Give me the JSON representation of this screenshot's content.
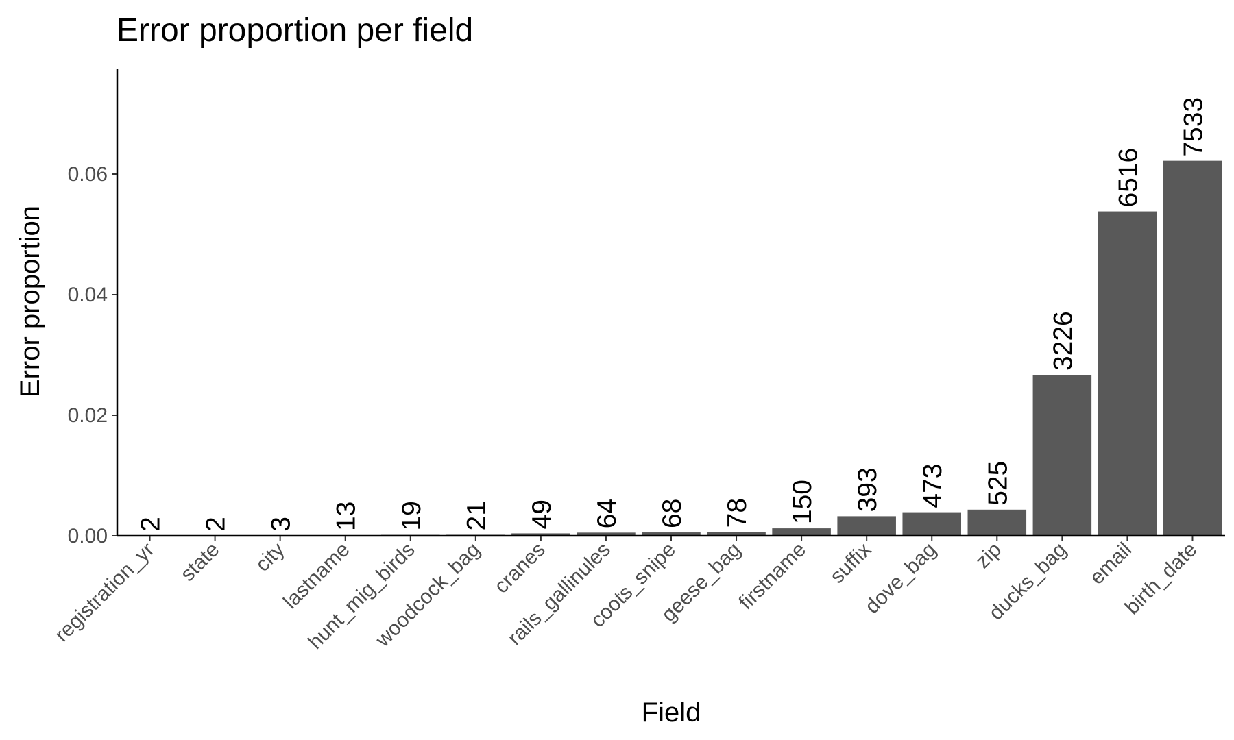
{
  "chart_data": {
    "type": "bar",
    "title": "Error proportion per field",
    "xlabel": "Field",
    "ylabel": "Error proportion",
    "ylim": [
      0,
      0.0775
    ],
    "yticks": [
      0.0,
      0.02,
      0.04,
      0.06
    ],
    "ytick_labels": [
      "0.00",
      "0.02",
      "0.04",
      "0.06"
    ],
    "grid": false,
    "bar_color": "#595959",
    "categories": [
      "registration_yr",
      "state",
      "city",
      "lastname",
      "hunt_mig_birds",
      "woodcock_bag",
      "cranes",
      "rails_gallinules",
      "coots_snipe",
      "geese_bag",
      "firstname",
      "suffix",
      "dove_bag",
      "zip",
      "ducks_bag",
      "email",
      "birth_date"
    ],
    "values": [
      1.65e-05,
      1.65e-05,
      2.48e-05,
      0.000107,
      0.000157,
      0.000173,
      0.000405,
      0.000529,
      0.000562,
      0.000645,
      0.00124,
      0.00325,
      0.00391,
      0.00434,
      0.0267,
      0.0538,
      0.0622
    ],
    "labels": [
      "2",
      "2",
      "3",
      "13",
      "19",
      "21",
      "49",
      "64",
      "68",
      "78",
      "150",
      "393",
      "473",
      "525",
      "3226",
      "6516",
      "7533"
    ]
  }
}
